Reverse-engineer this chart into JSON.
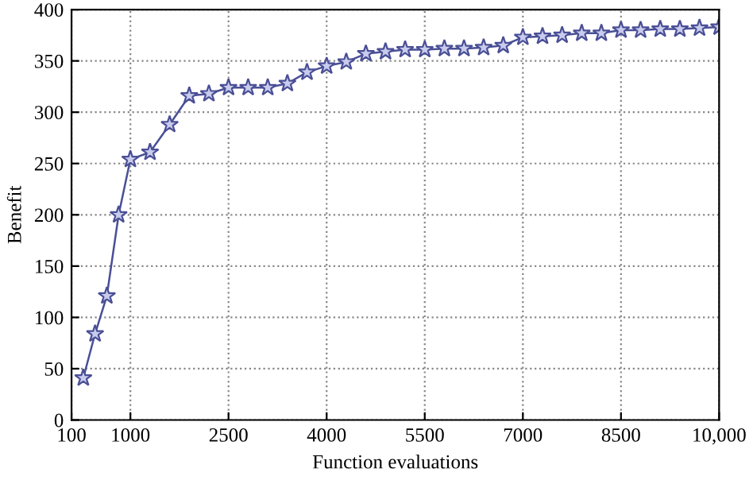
{
  "chart_data": {
    "type": "line",
    "xlabel": "Function evaluations",
    "ylabel": "Benefit",
    "x": [
      280,
      460,
      640,
      820,
      1000,
      1300,
      1600,
      1900,
      2200,
      2500,
      2800,
      3100,
      3400,
      3700,
      4000,
      4300,
      4600,
      4900,
      5200,
      5500,
      5800,
      6100,
      6400,
      6700,
      7000,
      7300,
      7600,
      7900,
      8200,
      8500,
      8800,
      9100,
      9400,
      9700,
      10000
    ],
    "series": [
      {
        "color": "#4a4f96",
        "values": [
          41,
          84,
          121,
          200,
          254,
          261,
          288,
          316,
          318,
          324,
          324,
          324,
          328,
          339,
          345,
          349,
          357,
          359,
          361,
          361,
          362,
          362,
          363,
          365,
          373,
          374,
          375,
          377,
          377,
          380,
          380,
          381,
          381,
          382,
          383
        ]
      }
    ],
    "xlim": [
      100,
      10000
    ],
    "xticks": [
      100,
      1000,
      2500,
      4000,
      5500,
      7000,
      8500,
      {
        "value": 10000,
        "label": "10,000"
      }
    ],
    "ylim": [
      0,
      400
    ],
    "yticks": [
      0,
      50,
      100,
      150,
      200,
      250,
      300,
      350,
      400
    ],
    "grid": true,
    "marker": "star",
    "line_style": "solid",
    "legend": false
  }
}
